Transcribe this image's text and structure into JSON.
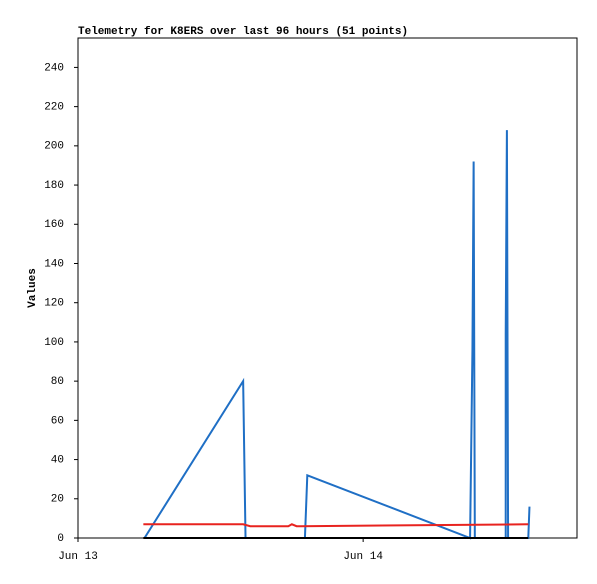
{
  "chart_data": {
    "type": "line",
    "title": "Telemetry for K8ERS over last 96 hours (51 points)",
    "y_label": "Values",
    "xlim": [
      0,
      42
    ],
    "ylim": [
      0,
      255
    ],
    "xticks": [
      {
        "value": 0,
        "label": "Jun 13"
      },
      {
        "value": 24,
        "label": "Jun 14"
      }
    ],
    "yticks": [
      0,
      20,
      40,
      60,
      80,
      100,
      120,
      140,
      160,
      180,
      200,
      220,
      240
    ],
    "series": [
      {
        "color": "#1f6fc5",
        "x": [
          5.6,
          13.9,
          14.0,
          14.1,
          19.1,
          19.2,
          19.3,
          33.0,
          33.2,
          33.3,
          33.4,
          36.0,
          36.0,
          36.1,
          36.2,
          37.9,
          38.0
        ],
        "values": [
          0,
          80,
          40,
          0,
          0,
          16,
          32,
          0,
          96,
          192,
          0,
          0,
          104,
          208,
          0,
          0,
          16
        ]
      },
      {
        "color": "#e8231f",
        "x": [
          5.5,
          13.9,
          14.5,
          17.7,
          18.0,
          18.4,
          18.7,
          37.9
        ],
        "values": [
          7,
          7,
          6,
          6,
          7,
          6,
          6,
          7
        ]
      },
      {
        "color": "#000000",
        "x": [
          5.5,
          37.9
        ],
        "values": [
          0,
          0
        ]
      }
    ]
  }
}
